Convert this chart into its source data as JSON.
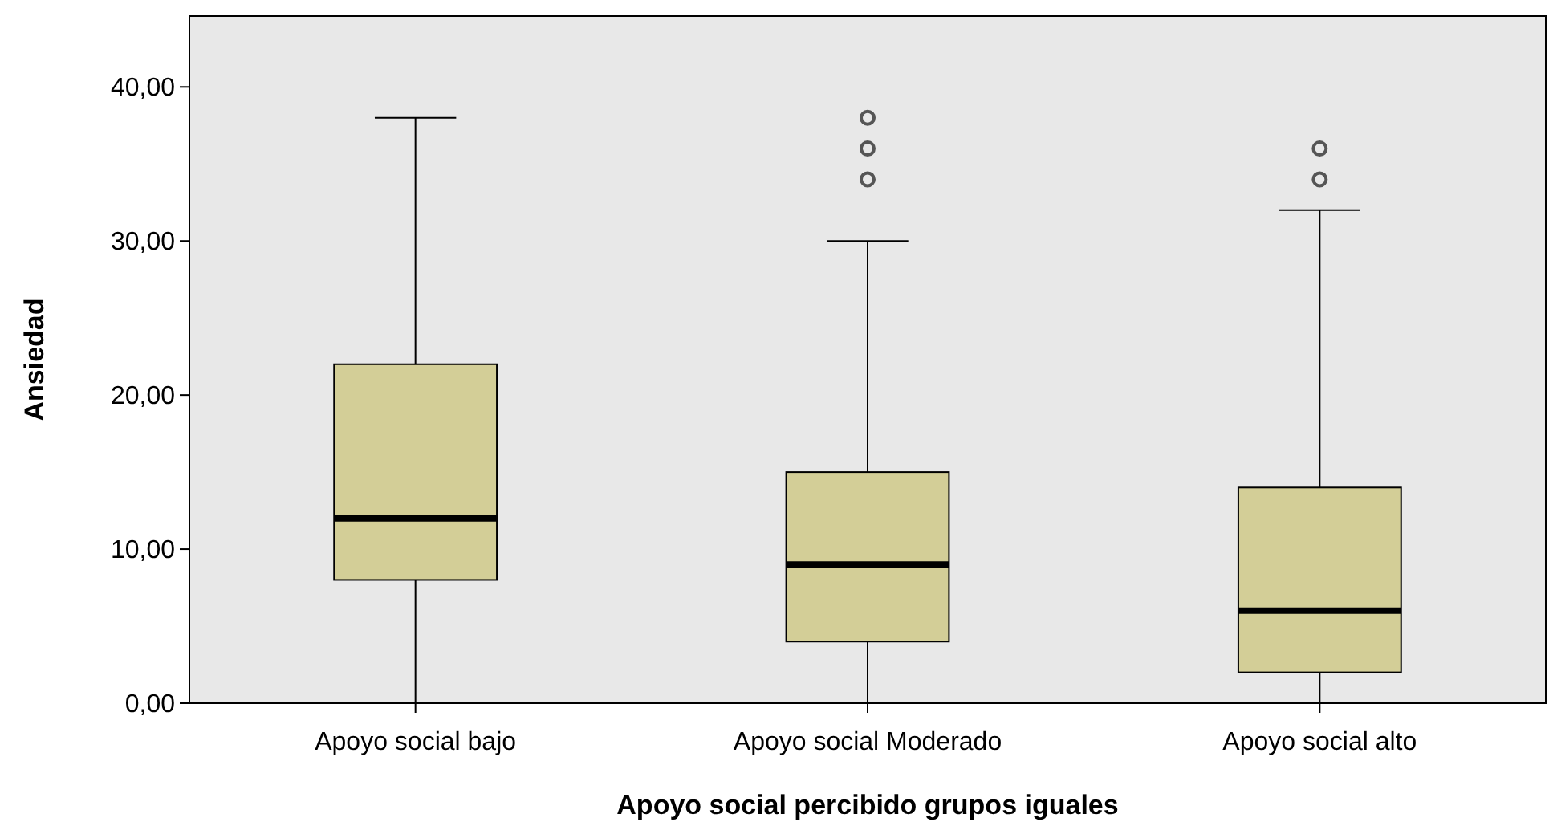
{
  "chart_data": {
    "type": "box",
    "xlabel": "Apoyo social percibido grupos iguales",
    "ylabel": "Ansiedad",
    "categories": [
      "Apoyo social bajo",
      "Apoyo social Moderado",
      "Apoyo social alto"
    ],
    "boxes": [
      {
        "low": 0,
        "q1": 8,
        "median": 12,
        "q3": 22,
        "high": 38
      },
      {
        "low": 0,
        "q1": 4,
        "median": 9,
        "q3": 15,
        "high": 30,
        "outliers": [
          34,
          36,
          38
        ]
      },
      {
        "low": 0,
        "q1": 2,
        "median": 6,
        "q3": 14,
        "high": 32,
        "outliers": [
          34,
          36
        ]
      }
    ],
    "color": "#d3ce97",
    "ylim": [
      0,
      44.6
    ],
    "yticks": [
      {
        "value": 0,
        "label": "0,00"
      },
      {
        "value": 10,
        "label": "10,00"
      },
      {
        "value": 20,
        "label": "20,00"
      },
      {
        "value": 30,
        "label": "30,00"
      },
      {
        "value": 40,
        "label": "40,00"
      }
    ],
    "grid": false
  }
}
